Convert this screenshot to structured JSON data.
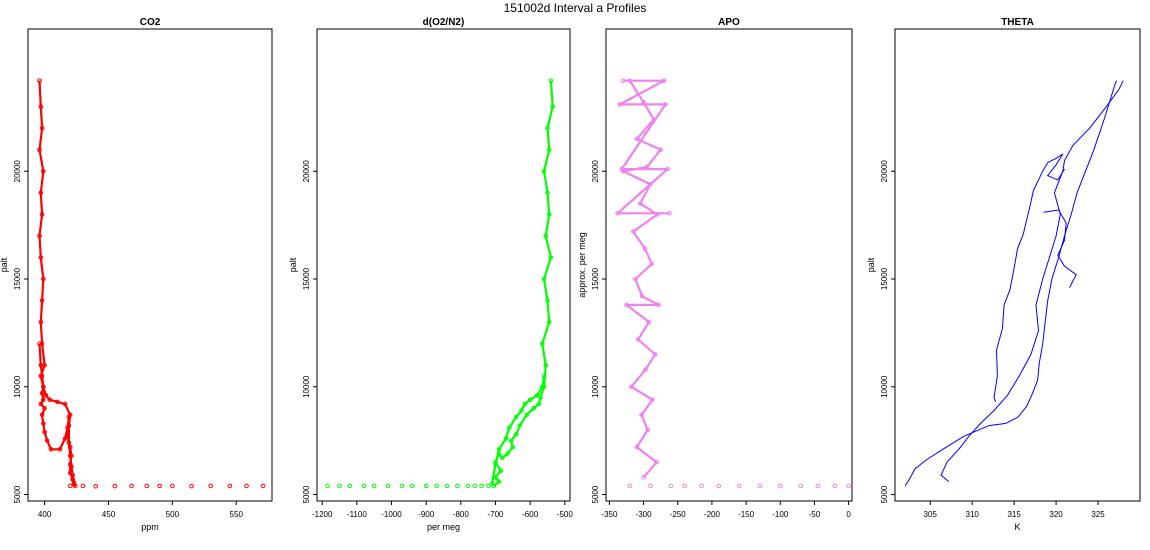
{
  "title": "151002d   Interval a Profiles",
  "chart_data": [
    {
      "type": "scatter",
      "title": "CO2",
      "xlabel": "ppm",
      "ylabel": "palt",
      "xlim": [
        387,
        578
      ],
      "ylim": [
        4700,
        26600
      ],
      "xticks": [
        400,
        450,
        500,
        550
      ],
      "yticks": [
        5000,
        10000,
        15000,
        20000
      ],
      "color": "#ff0000",
      "series": [
        {
          "x": [
            396,
            397,
            398,
            396,
            399,
            397,
            398,
            396,
            397,
            399,
            398,
            397,
            398,
            400,
            397,
            399,
            398,
            399,
            397,
            400,
            398,
            399,
            400,
            402,
            405,
            412,
            416,
            418,
            419,
            419,
            420,
            421,
            422,
            422,
            423,
            424
          ],
          "y": [
            24200,
            23000,
            22000,
            21000,
            20000,
            19000,
            18000,
            17000,
            16000,
            15000,
            14000,
            13000,
            12000,
            11000,
            10500,
            10000,
            9700,
            9400,
            9200,
            9000,
            8700,
            8300,
            7900,
            7500,
            7100,
            7100,
            7600,
            8100,
            8600,
            7400,
            6800,
            6300,
            5900,
            5700,
            5550,
            5400
          ]
        },
        {
          "x": [
            396,
            397,
            398,
            399,
            401,
            404,
            410,
            416,
            420,
            419,
            418,
            420,
            421,
            420,
            420,
            422,
            423
          ],
          "y": [
            12000,
            11000,
            10500,
            10000,
            9600,
            9400,
            9300,
            9200,
            8700,
            8200,
            7700,
            7200,
            6800,
            6400,
            6000,
            5700,
            5450
          ]
        },
        {
          "x": [
            420,
            430,
            440,
            455,
            468,
            480,
            490,
            500,
            515,
            530,
            545,
            558,
            571
          ],
          "y": [
            5400,
            5400,
            5380,
            5390,
            5400,
            5400,
            5400,
            5400,
            5390,
            5400,
            5400,
            5400,
            5400
          ]
        }
      ]
    },
    {
      "type": "scatter",
      "title": "d(O2/N2)",
      "xlabel": "per meg",
      "ylabel": "palt",
      "xlim": [
        -1215,
        -485
      ],
      "ylim": [
        4700,
        26600
      ],
      "xticks": [
        -1200,
        -1100,
        -1000,
        -900,
        -800,
        -700,
        -600,
        -500
      ],
      "yticks": [
        5000,
        10000,
        15000,
        20000
      ],
      "color": "#00ff00",
      "series": [
        {
          "x": [
            -540,
            -535,
            -550,
            -545,
            -560,
            -550,
            -545,
            -555,
            -540,
            -560,
            -550,
            -545,
            -565,
            -555,
            -560,
            -570,
            -575,
            -590,
            -610,
            -630,
            -640,
            -655,
            -650,
            -665,
            -680,
            -690,
            -700,
            -685,
            -700,
            -690,
            -705
          ],
          "y": [
            24200,
            23000,
            22000,
            21000,
            20000,
            19000,
            18000,
            17000,
            16000,
            15000,
            14000,
            13000,
            12000,
            11000,
            10000,
            9500,
            9200,
            9000,
            8700,
            8200,
            7800,
            7500,
            7200,
            6900,
            6700,
            6900,
            6500,
            6100,
            5800,
            5600,
            5400
          ]
        },
        {
          "x": [
            -560,
            -565,
            -580,
            -600,
            -615,
            -625,
            -640,
            -660,
            -670,
            -690,
            -700,
            -710
          ],
          "y": [
            10500,
            10000,
            9600,
            9400,
            9200,
            8900,
            8600,
            8100,
            7600,
            7100,
            6400,
            5500
          ]
        },
        {
          "x": [
            -1185,
            -1150,
            -1120,
            -1080,
            -1050,
            -1010,
            -970,
            -940,
            -900,
            -870,
            -840,
            -810,
            -780,
            -760,
            -740,
            -720
          ],
          "y": [
            5400,
            5400,
            5400,
            5400,
            5400,
            5400,
            5400,
            5400,
            5400,
            5400,
            5400,
            5400,
            5400,
            5400,
            5400,
            5400
          ]
        }
      ]
    },
    {
      "type": "scatter",
      "title": "APO",
      "xlabel": "",
      "ylabel": "approx. per meg",
      "xlim": [
        -355,
        5
      ],
      "ylim": [
        4700,
        26600
      ],
      "xticks": [
        -350,
        -300,
        -250,
        -200,
        -150,
        -100,
        -50,
        0
      ],
      "yticks": [
        5000,
        10000,
        15000,
        20000
      ],
      "color": "#ee82ee",
      "series": [
        {
          "x": [
            -320,
            -300,
            -285,
            -310,
            -275,
            -295,
            -330,
            -290,
            -305,
            -280,
            -315,
            -298,
            -288,
            -312,
            -302,
            -278,
            -325,
            -292,
            -308,
            -283,
            -297,
            -318,
            -287,
            -303,
            -294,
            -310,
            -281,
            -300
          ],
          "y": [
            24200,
            23200,
            22400,
            21500,
            21000,
            20200,
            20000,
            19400,
            18500,
            18000,
            17200,
            16400,
            15700,
            15000,
            14200,
            13800,
            13800,
            13000,
            12200,
            11500,
            10800,
            10000,
            9400,
            8700,
            8000,
            7200,
            6500,
            5800
          ]
        },
        {
          "x": [
            -330,
            -270,
            -335,
            -268,
            -332,
            -265,
            -338,
            -262
          ],
          "y": [
            24200,
            24200,
            23100,
            23100,
            20100,
            20100,
            18050,
            18050
          ]
        },
        {
          "x": [
            -320,
            -290,
            -260,
            -240,
            -215,
            -190,
            -160,
            -130,
            -100,
            -70,
            -45,
            -20,
            0
          ],
          "y": [
            5400,
            5400,
            5400,
            5400,
            5400,
            5400,
            5400,
            5400,
            5400,
            5400,
            5400,
            5400,
            5400
          ]
        }
      ]
    },
    {
      "type": "line",
      "title": "THETA",
      "xlabel": "K",
      "ylabel": "palt",
      "xlim": [
        300.8,
        330
      ],
      "ylim": [
        4700,
        26600
      ],
      "xticks": [
        305,
        310,
        315,
        320,
        325
      ],
      "yticks": [
        5000,
        10000,
        15000,
        20000
      ],
      "color": "#0000ff",
      "series": [
        {
          "x": [
            302.0,
            302.5,
            303.2,
            304.5,
            306.5,
            309.0,
            312.0,
            314.0,
            315.5,
            316.5,
            317.2,
            317.8,
            318.0,
            318.4,
            318.7,
            319.0,
            319.5,
            320.3,
            321.0,
            321.8,
            322.5,
            323.5,
            324.5,
            325.8,
            327.0,
            327.2
          ],
          "y": [
            5400,
            5700,
            6200,
            6600,
            7100,
            7700,
            8200,
            8300,
            8600,
            9100,
            9700,
            10300,
            11100,
            12000,
            13000,
            14000,
            15000,
            16000,
            17000,
            18000,
            19000,
            20000,
            21000,
            22500,
            24000,
            24200
          ]
        },
        {
          "x": [
            307.2,
            306.3,
            307.0,
            308.4,
            309.6,
            311.0,
            312.6,
            314.2,
            315.6,
            317.0,
            317.9,
            317.6,
            318.4,
            319.2,
            320.0,
            320.5,
            319.8,
            320.8,
            321.0,
            322.0,
            324.0,
            326.0,
            327.5,
            328.0
          ],
          "y": [
            5600,
            5900,
            6500,
            7100,
            7700,
            8300,
            8900,
            9600,
            10500,
            11500,
            12600,
            13800,
            15000,
            16000,
            17000,
            18000,
            19000,
            20000,
            20500,
            21200,
            22000,
            23000,
            23800,
            24200
          ]
        },
        {
          "x": [
            312.8,
            312.6,
            313.0,
            312.9,
            313.6,
            313.8,
            314.5,
            315.0,
            315.4,
            316.1,
            316.4,
            316.9,
            317.3,
            318.4,
            319.0,
            320.0,
            320.8,
            320.0,
            319.0,
            320.2,
            321.0
          ],
          "y": [
            9300,
            9500,
            10500,
            11700,
            12700,
            13800,
            14500,
            15500,
            16400,
            17100,
            17600,
            18400,
            19100,
            20000,
            20400,
            20600,
            20800,
            20300,
            19800,
            19600,
            20100
          ]
        },
        {
          "x": [
            318.5,
            320.3,
            321.2,
            321.0,
            320.2,
            321.0,
            322.4,
            321.6
          ],
          "y": [
            18100,
            18200,
            17600,
            16800,
            16100,
            15600,
            15200,
            14600
          ]
        }
      ]
    }
  ]
}
